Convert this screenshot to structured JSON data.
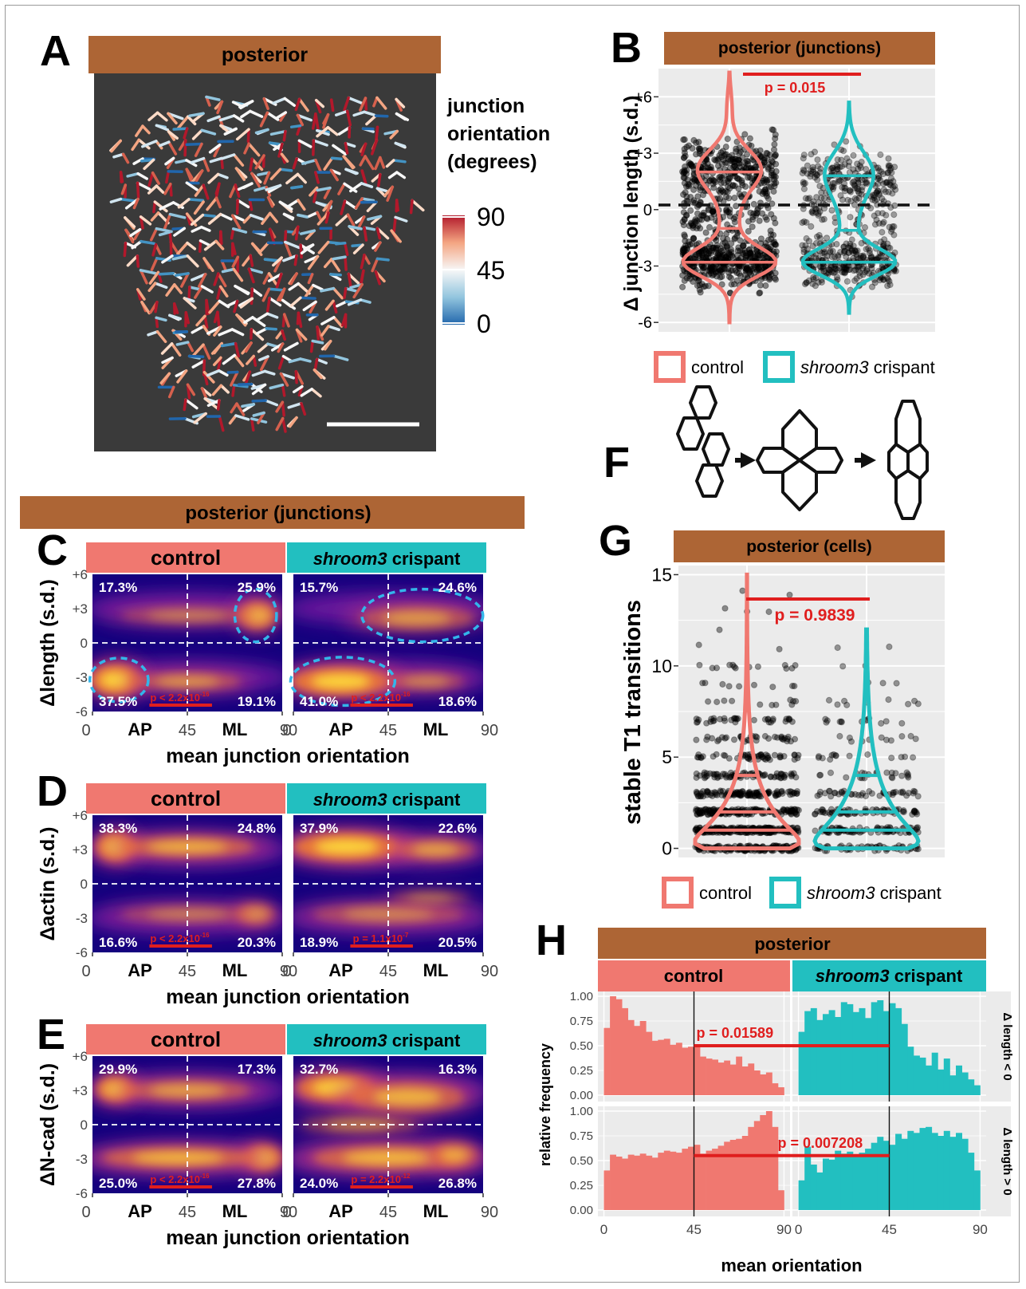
{
  "colors": {
    "control": "#f07870",
    "crispant": "#22bfc0",
    "strip": "#ad6535",
    "pval": "#e01e1e",
    "heat_dark": "#15027e",
    "panel_bg": "#ebebeb",
    "image_bg": "#3a3a3a",
    "dash": "#33b5ea"
  },
  "panels": {
    "A": "A",
    "B": "B",
    "C": "C",
    "D": "D",
    "E": "E",
    "F": "F",
    "G": "G",
    "H": "H"
  },
  "panel_a": {
    "strip": "posterior",
    "legend_title": [
      "junction",
      "orientation",
      "(degrees)"
    ],
    "legend_ticks": [
      "90",
      "45",
      "0"
    ],
    "colorbar": {
      "min": 0,
      "max": 90
    }
  },
  "panel_b": {
    "strip": "posterior (junctions)",
    "ylabel": "Δ junction length (s.d.)",
    "yticks": [
      "+6",
      "+3",
      "0",
      "-3",
      "-6"
    ],
    "pvalue": "p = 0.015",
    "legend": {
      "control": "control",
      "crispant_italic": "shroom3",
      "crispant_rest": " crispant"
    }
  },
  "panel_cde": {
    "strip": "posterior (junctions)",
    "facet_control": "control",
    "facet_crispant_italic": "shroom3",
    "facet_crispant_rest": " crispant",
    "xlabel": "mean junction orientation",
    "xticks": [
      "0",
      "45",
      "90"
    ],
    "xcat": [
      "AP",
      "ML"
    ],
    "yticks": [
      "+6",
      "+3",
      "0",
      "-3",
      "-6"
    ]
  },
  "panel_c": {
    "ylabel": "Δlength (s.d.)",
    "control": {
      "tl": "17.3%",
      "tr": "25.9%",
      "bl": "37.5%",
      "br": "19.1%"
    },
    "crispant": {
      "tl": "15.7%",
      "tr": "24.6%",
      "bl": "41.0%",
      "br": "18.6%"
    },
    "pval_text": "p < 2.2x10",
    "pval_exp": "-16"
  },
  "panel_d": {
    "ylabel": "Δactin (s.d.)",
    "control": {
      "tl": "38.3%",
      "tr": "24.8%",
      "bl": "16.6%",
      "br": "20.3%"
    },
    "crispant": {
      "tl": "37.9%",
      "tr": "22.6%",
      "bl": "18.9%",
      "br": "20.5%"
    },
    "pval_control": "p < 2.2x10",
    "pval_control_exp": "-16",
    "pval_crispant": "p = 1.1x10",
    "pval_crispant_exp": "-7"
  },
  "panel_e": {
    "ylabel": "ΔN-cad (s.d.)",
    "control": {
      "tl": "29.9%",
      "tr": "17.3%",
      "bl": "25.0%",
      "br": "27.8%"
    },
    "crispant": {
      "tl": "32.7%",
      "tr": "16.3%",
      "bl": "24.0%",
      "br": "26.8%"
    },
    "pval_control": "p < 2.2x10",
    "pval_control_exp": "-16",
    "pval_crispant": "p = 2.2x10",
    "pval_crispant_exp": "-12"
  },
  "panel_g": {
    "strip": "posterior (cells)",
    "ylabel": "stable T1 transitions",
    "yticks": [
      "15",
      "10",
      "5",
      "0"
    ],
    "pvalue": "p = 0.9839",
    "legend": {
      "control": "control",
      "crispant_italic": "shroom3",
      "crispant_rest": " crispant"
    }
  },
  "panel_h": {
    "strip": "posterior",
    "facet_control": "control",
    "facet_crispant_italic": "shroom3",
    "facet_crispant_rest": " crispant",
    "ylabel": "relative frequency",
    "xlabel": "mean orientation",
    "yticks": [
      "1.00",
      "0.75",
      "0.50",
      "0.25",
      "0.00"
    ],
    "xticks": [
      "0",
      "45",
      "90"
    ],
    "row_top": "Δ length < 0",
    "row_bottom": "Δ length > 0",
    "pval_top": "p = 0.01589",
    "pval_bottom": "p = 0.007208"
  },
  "chart_data": [
    {
      "type": "scatter",
      "panel": "B",
      "title": "posterior (junctions)",
      "ylabel": "Δ junction length (s.d.)",
      "ylim": [
        -6.5,
        7.5
      ],
      "series": [
        {
          "name": "control",
          "violin_quartiles": [
            -2.8,
            -1.0,
            2.0
          ],
          "range": [
            -6.0,
            7.3
          ]
        },
        {
          "name": "shroom3 crispant",
          "violin_quartiles": [
            -2.8,
            -1.1,
            1.8
          ],
          "range": [
            -5.5,
            5.7
          ]
        }
      ],
      "annotation": "p = 0.015"
    },
    {
      "type": "heatmap",
      "panel": "C",
      "ylabel": "Δlength (s.d.)",
      "xlabel": "mean junction orientation",
      "xlim": [
        0,
        90
      ],
      "ylim": [
        -6,
        6
      ],
      "series": [
        {
          "name": "control",
          "quadrants": {
            "AP,+": 17.3,
            "ML,+": 25.9,
            "AP,-": 37.5,
            "ML,-": 19.1
          }
        },
        {
          "name": "shroom3 crispant",
          "quadrants": {
            "AP,+": 15.7,
            "ML,+": 24.6,
            "AP,-": 41.0,
            "ML,-": 18.6
          }
        }
      ]
    },
    {
      "type": "heatmap",
      "panel": "D",
      "ylabel": "Δactin (s.d.)",
      "xlabel": "mean junction orientation",
      "xlim": [
        0,
        90
      ],
      "ylim": [
        -6,
        6
      ],
      "series": [
        {
          "name": "control",
          "quadrants": {
            "AP,+": 38.3,
            "ML,+": 24.8,
            "AP,-": 16.6,
            "ML,-": 20.3
          }
        },
        {
          "name": "shroom3 crispant",
          "quadrants": {
            "AP,+": 37.9,
            "ML,+": 22.6,
            "AP,-": 18.9,
            "ML,-": 20.5
          }
        }
      ]
    },
    {
      "type": "heatmap",
      "panel": "E",
      "ylabel": "ΔN-cad (s.d.)",
      "xlabel": "mean junction orientation",
      "xlim": [
        0,
        90
      ],
      "ylim": [
        -6,
        6
      ],
      "series": [
        {
          "name": "control",
          "quadrants": {
            "AP,+": 29.9,
            "ML,+": 17.3,
            "AP,-": 25.0,
            "ML,-": 27.8
          }
        },
        {
          "name": "shroom3 crispant",
          "quadrants": {
            "AP,+": 32.7,
            "ML,+": 16.3,
            "AP,-": 24.0,
            "ML,-": 26.8
          }
        }
      ]
    },
    {
      "type": "scatter",
      "panel": "G",
      "title": "posterior (cells)",
      "ylabel": "stable T1 transitions",
      "ylim": [
        -0.5,
        15.5
      ],
      "series": [
        {
          "name": "control",
          "violin_quartiles": [
            1,
            2,
            4
          ],
          "range": [
            0,
            15
          ]
        },
        {
          "name": "shroom3 crispant",
          "violin_quartiles": [
            1,
            2,
            4
          ],
          "range": [
            0,
            12
          ]
        }
      ],
      "annotation": "p = 0.9839"
    },
    {
      "type": "bar",
      "panel": "H",
      "title": "posterior",
      "xlabel": "mean orientation",
      "ylabel": "relative frequency",
      "xlim": [
        0,
        90
      ],
      "ylim": [
        0,
        1
      ],
      "bin_width": 3,
      "series": [
        {
          "name": "control",
          "row": "Δ length < 0",
          "values": [
            0.68,
            1.0,
            0.97,
            0.88,
            0.76,
            0.7,
            0.75,
            0.64,
            0.55,
            0.56,
            0.57,
            0.51,
            0.53,
            0.48,
            0.49,
            0.5,
            0.39,
            0.37,
            0.36,
            0.33,
            0.35,
            0.31,
            0.39,
            0.29,
            0.32,
            0.25,
            0.21,
            0.23,
            0.12,
            0.08
          ]
        },
        {
          "name": "shroom3 crispant",
          "row": "Δ length < 0",
          "values": [
            0.64,
            0.85,
            0.88,
            0.76,
            0.82,
            0.86,
            0.79,
            0.94,
            0.92,
            0.84,
            0.88,
            0.78,
            0.94,
            0.96,
            0.85,
            0.93,
            0.88,
            0.72,
            0.49,
            0.4,
            0.38,
            0.3,
            0.43,
            0.26,
            0.37,
            0.2,
            0.3,
            0.23,
            0.16,
            0.1
          ]
        },
        {
          "name": "control",
          "row": "Δ length > 0",
          "values": [
            0.4,
            0.56,
            0.54,
            0.52,
            0.56,
            0.55,
            0.57,
            0.55,
            0.53,
            0.58,
            0.6,
            0.59,
            0.58,
            0.62,
            0.64,
            0.66,
            0.57,
            0.6,
            0.62,
            0.65,
            0.69,
            0.71,
            0.72,
            0.75,
            0.84,
            0.9,
            0.96,
            1.0,
            0.84,
            0.2
          ]
        },
        {
          "name": "shroom3 crispant",
          "row": "Δ length > 0",
          "values": [
            0.3,
            0.64,
            0.46,
            0.38,
            0.52,
            0.51,
            0.6,
            0.57,
            0.59,
            0.54,
            0.58,
            0.62,
            0.68,
            0.74,
            0.7,
            0.66,
            0.77,
            0.72,
            0.8,
            0.78,
            0.83,
            0.84,
            0.78,
            0.75,
            0.8,
            0.74,
            0.78,
            0.72,
            0.58,
            0.4
          ]
        }
      ],
      "annotations": [
        "p = 0.01589",
        "p = 0.007208"
      ]
    }
  ]
}
